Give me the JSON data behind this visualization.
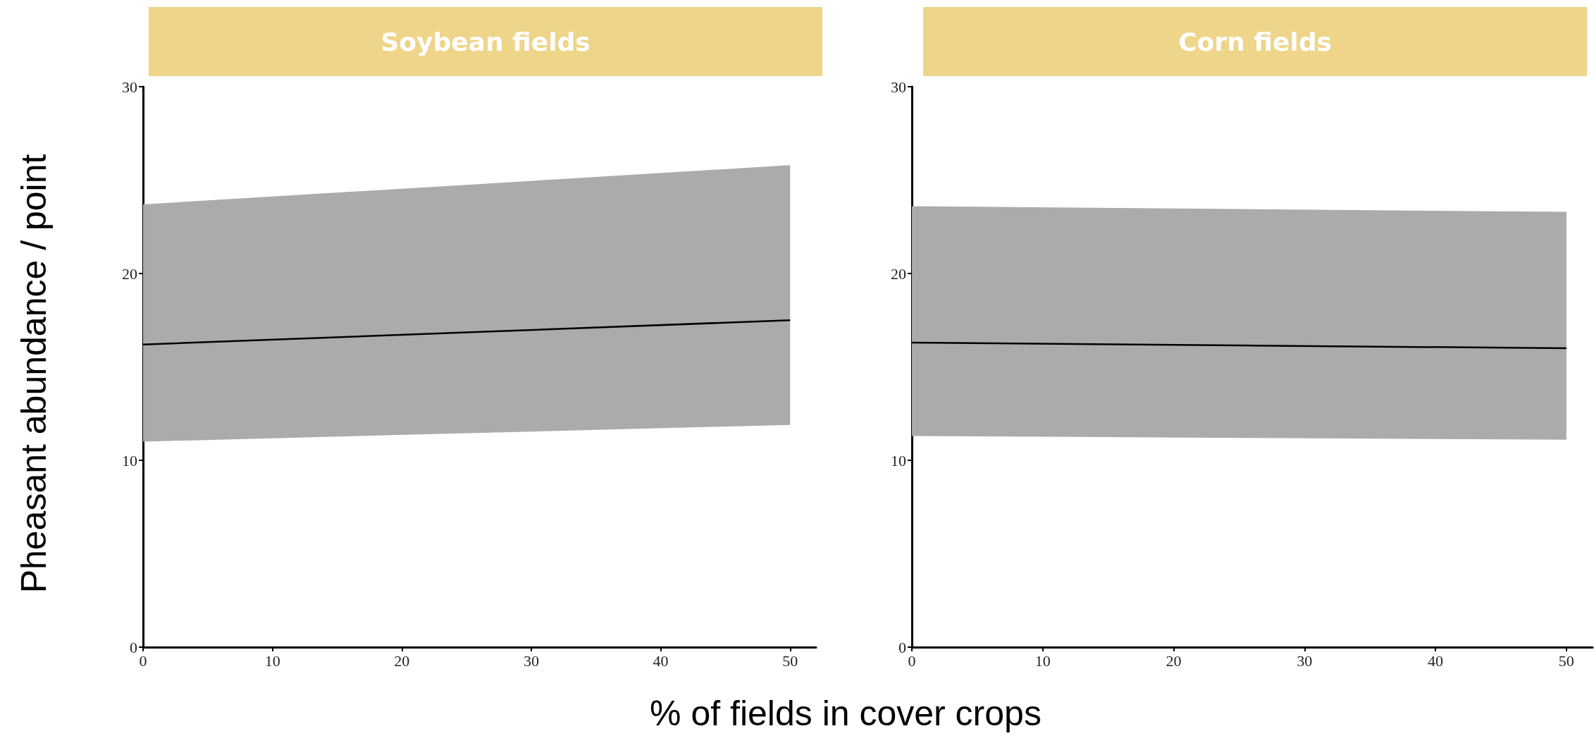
{
  "chart_data": [
    {
      "type": "line",
      "title": "Soybean fields",
      "ylabel": "Pheasant abundance / point",
      "xlabel": "% of fields in cover crops",
      "xlim": [
        0,
        52
      ],
      "xticks": [
        0,
        10,
        20,
        30,
        40,
        50
      ],
      "ylim": [
        0,
        30
      ],
      "yticks": [
        0,
        10,
        20,
        30
      ],
      "grid": false,
      "series": [
        {
          "color": "#000000",
          "x": [
            0,
            25,
            50
          ],
          "values": [
            16.2,
            16.85,
            17.5
          ],
          "lower": [
            11.0,
            11.45,
            11.9
          ],
          "upper": [
            23.7,
            24.75,
            25.8
          ]
        }
      ]
    },
    {
      "type": "line",
      "title": "Corn fields",
      "xlim": [
        0,
        52
      ],
      "xticks": [
        0,
        10,
        20,
        30,
        40,
        50
      ],
      "ylim": [
        0,
        30
      ],
      "yticks": [
        0,
        10,
        20,
        30
      ],
      "grid": false,
      "series": [
        {
          "color": "#000000",
          "x": [
            0,
            25,
            50
          ],
          "values": [
            16.3,
            16.15,
            16.0
          ],
          "lower": [
            11.3,
            11.2,
            11.1
          ],
          "upper": [
            23.6,
            23.45,
            23.3
          ]
        }
      ]
    }
  ]
}
